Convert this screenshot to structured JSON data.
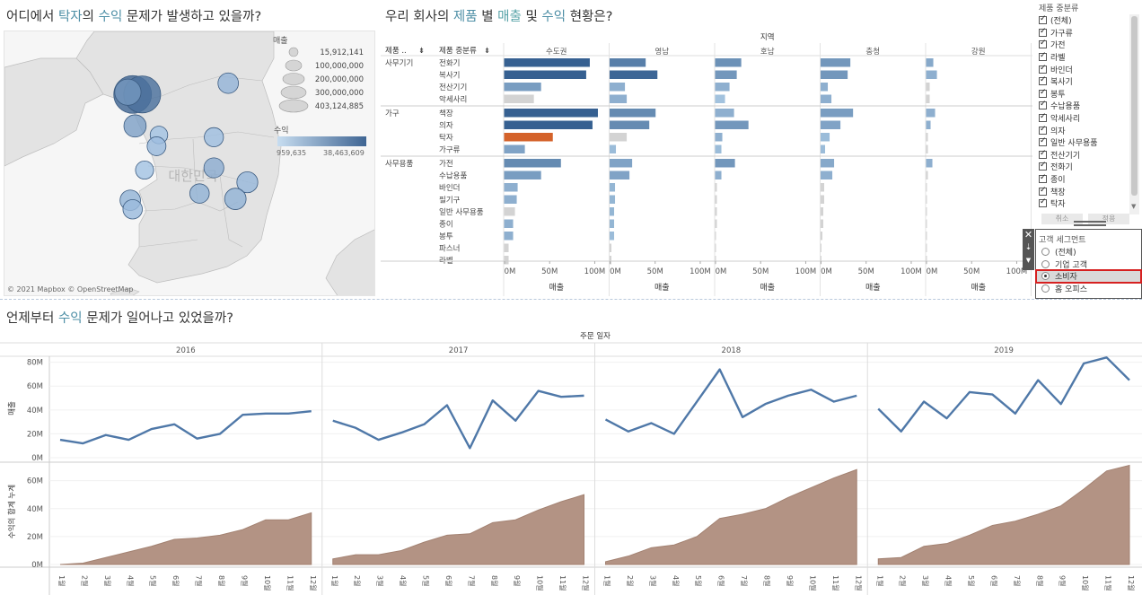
{
  "titles": {
    "map": [
      "어디에서 ",
      "탁자",
      "의 ",
      "수익",
      " 문제가 발생하고 있을까?"
    ],
    "bar": [
      "우리 회사의 ",
      "제품",
      " 별 ",
      "매출",
      " 및 ",
      "수익",
      " 현황은?"
    ],
    "line": [
      "언제부터 ",
      "수익",
      " 문제가 일어나고 있었을까?"
    ]
  },
  "map": {
    "country_label": "대한민국",
    "attribution": "© 2021 Mapbox © OpenStreetMap",
    "size_legend_title": "매출",
    "size_legend_values": [
      "15,912,141",
      "100,000,000",
      "200,000,000",
      "300,000,000",
      "403,124,885"
    ],
    "color_legend_title": "수익",
    "color_legend_min": "959,635",
    "color_legend_max": "38,463,609",
    "points": [
      {
        "lon": 126.9,
        "lat": 37.5,
        "sales": 403124885,
        "profit": 38463609
      },
      {
        "lon": 127.1,
        "lat": 37.5,
        "sales": 380000000,
        "profit": 34000000
      },
      {
        "lon": 126.8,
        "lat": 37.55,
        "sales": 120000000,
        "profit": 20000000
      },
      {
        "lon": 128.9,
        "lat": 37.75,
        "sales": 40000000,
        "profit": 8000000
      },
      {
        "lon": 126.95,
        "lat": 36.8,
        "sales": 60000000,
        "profit": 16000000
      },
      {
        "lon": 127.45,
        "lat": 36.6,
        "sales": 15912141,
        "profit": 3000000
      },
      {
        "lon": 127.4,
        "lat": 36.35,
        "sales": 25000000,
        "profit": 5000000
      },
      {
        "lon": 128.6,
        "lat": 36.55,
        "sales": 28000000,
        "profit": 4000000
      },
      {
        "lon": 128.6,
        "lat": 35.87,
        "sales": 35000000,
        "profit": 11000000
      },
      {
        "lon": 127.15,
        "lat": 35.82,
        "sales": 20000000,
        "profit": 3000000
      },
      {
        "lon": 128.3,
        "lat": 35.3,
        "sales": 30000000,
        "profit": 9000000
      },
      {
        "lon": 129.3,
        "lat": 35.55,
        "sales": 45000000,
        "profit": 7000000
      },
      {
        "lon": 126.85,
        "lat": 35.15,
        "sales": 40000000,
        "profit": 9000000
      },
      {
        "lon": 126.9,
        "lat": 34.95,
        "sales": 30000000,
        "profit": 6000000
      },
      {
        "lon": 129.05,
        "lat": 35.18,
        "sales": 50000000,
        "profit": 9000000
      }
    ]
  },
  "bar": {
    "column_header": "지역",
    "dim1_header": "제품 ..",
    "dim2_header": "제품 중분류",
    "axis_label": "매출",
    "axis_ticks": [
      "0M",
      "50M",
      "100M"
    ],
    "regions": [
      "수도권",
      "영남",
      "호남",
      "충청",
      "강원"
    ],
    "groups": [
      {
        "name": "사무기기",
        "items": [
          {
            "name": "전화기",
            "values": [
              95,
              40,
              29,
              33,
              8
            ],
            "profit": [
              0.95,
              0.7,
              0.55,
              0.5,
              0.35
            ]
          },
          {
            "name": "복사기",
            "values": [
              91,
              53,
              24,
              30,
              12
            ],
            "profit": [
              0.95,
              0.9,
              0.5,
              0.5,
              0.3
            ]
          },
          {
            "name": "전산기기",
            "values": [
              41,
              17,
              16,
              8,
              4
            ],
            "profit": [
              0.45,
              0.3,
              0.3,
              0.3,
              0.1
            ]
          },
          {
            "name": "악세사리",
            "values": [
              33,
              19,
              11,
              12,
              4
            ],
            "profit": [
              0.05,
              0.3,
              0.15,
              0.3,
              0.05
            ]
          }
        ]
      },
      {
        "name": "가구",
        "items": [
          {
            "name": "책장",
            "values": [
              104,
              51,
              21,
              36,
              10
            ],
            "profit": [
              0.95,
              0.6,
              0.3,
              0.45,
              0.3
            ]
          },
          {
            "name": "의자",
            "values": [
              98,
              44,
              37,
              22,
              5
            ],
            "profit": [
              0.95,
              0.6,
              0.5,
              0.4,
              0.3
            ]
          },
          {
            "name": "탁자",
            "values": [
              54,
              19,
              8,
              10,
              2
            ],
            "profit": [
              -1,
              0.02,
              0.3,
              0.2,
              0.1
            ]
          },
          {
            "name": "가구류",
            "values": [
              23,
              7,
              7,
              5,
              2
            ],
            "profit": [
              0.4,
              0.2,
              0.2,
              0.2,
              0.1
            ]
          }
        ]
      },
      {
        "name": "사무용품",
        "items": [
          {
            "name": "가전",
            "values": [
              63,
              25,
              22,
              15,
              7
            ],
            "profit": [
              0.6,
              0.4,
              0.5,
              0.35,
              0.3
            ]
          },
          {
            "name": "수납용품",
            "values": [
              41,
              22,
              7,
              13,
              2
            ],
            "profit": [
              0.45,
              0.4,
              0.3,
              0.3,
              0.1
            ]
          },
          {
            "name": "바인더",
            "values": [
              15,
              6,
              2,
              4,
              1
            ],
            "profit": [
              0.3,
              0.25,
              0.05,
              0.1,
              0.1
            ]
          },
          {
            "name": "필기구",
            "values": [
              14,
              6,
              2,
              4,
              1
            ],
            "profit": [
              0.3,
              0.25,
              0.05,
              0.1,
              0.1
            ]
          },
          {
            "name": "일반 사무용품",
            "values": [
              12,
              5,
              2,
              3,
              1
            ],
            "profit": [
              0.1,
              0.25,
              0.05,
              0.1,
              0.1
            ]
          },
          {
            "name": "종이",
            "values": [
              10,
              5,
              2,
              3,
              1
            ],
            "profit": [
              0.3,
              0.25,
              0.05,
              0.1,
              0.1
            ]
          },
          {
            "name": "봉투",
            "values": [
              10,
              5,
              1,
              2,
              1
            ],
            "profit": [
              0.3,
              0.2,
              0.05,
              0.1,
              0.1
            ]
          },
          {
            "name": "파스너",
            "values": [
              5,
              2,
              1,
              1,
              0.5
            ],
            "profit": [
              0.1,
              0.1,
              0.05,
              0.05,
              0.05
            ]
          },
          {
            "name": "라벨",
            "values": [
              5,
              2,
              1,
              1,
              0.5
            ],
            "profit": [
              0.1,
              0.1,
              0.05,
              0.05,
              0.05
            ]
          }
        ]
      }
    ]
  },
  "filter_category": {
    "title": "제품 중분류",
    "items": [
      "(전체)",
      "가구류",
      "가전",
      "라벨",
      "바인더",
      "복사기",
      "봉투",
      "수납용품",
      "악세사리",
      "의자",
      "일반 사무용품",
      "전산기기",
      "전화기",
      "종이",
      "책장",
      "탁자"
    ],
    "cancel": "취소",
    "apply": "적용"
  },
  "filter_segment": {
    "title": "고객 세그먼트",
    "items": [
      "(전체)",
      "기업 고객",
      "소비자",
      "홈 오피스"
    ],
    "selected": "소비자"
  },
  "chart_data": {
    "type": "line",
    "title": "언제부터 수익 문제가 일어나고 있었을까?",
    "column_header": "주문 일자",
    "years": [
      "2016",
      "2017",
      "2018",
      "2019"
    ],
    "months": [
      "1월",
      "2월",
      "3월",
      "4월",
      "5월",
      "6월",
      "7월",
      "8월",
      "9월",
      "10월",
      "11월",
      "12월"
    ],
    "top_ylabel": "매출",
    "top_ylim": [
      0,
      85
    ],
    "top_ticks": [
      "0M",
      "20M",
      "40M",
      "60M",
      "80M"
    ],
    "bottom_ylabel": "수익의 합계 누계",
    "bottom_ylim": [
      0,
      72
    ],
    "bottom_ticks": [
      "0M",
      "20M",
      "40M",
      "60M"
    ],
    "series": [
      {
        "name": "매출",
        "unit": "M",
        "by_year": [
          [
            15,
            12,
            19,
            15,
            24,
            28,
            16,
            20,
            36,
            37,
            37,
            39
          ],
          [
            31,
            25,
            15,
            21,
            28,
            44,
            8,
            48,
            31,
            56,
            51,
            52
          ],
          [
            32,
            22,
            29,
            20,
            47,
            74,
            34,
            45,
            52,
            57,
            47,
            52
          ],
          [
            41,
            22,
            47,
            33,
            55,
            53,
            37,
            65,
            45,
            79,
            84,
            65
          ]
        ]
      },
      {
        "name": "수익의 합계 누계",
        "unit": "M",
        "by_year": [
          [
            0,
            1,
            5,
            9,
            13,
            18,
            19,
            21,
            25,
            32,
            32,
            37
          ],
          [
            4,
            7,
            7,
            10,
            16,
            21,
            22,
            30,
            32,
            39,
            45,
            50
          ],
          [
            2,
            6,
            12,
            14,
            20,
            33,
            36,
            40,
            48,
            55,
            62,
            68
          ],
          [
            4,
            5,
            13,
            15,
            21,
            28,
            31,
            36,
            42,
            54,
            67,
            71
          ]
        ]
      }
    ]
  }
}
